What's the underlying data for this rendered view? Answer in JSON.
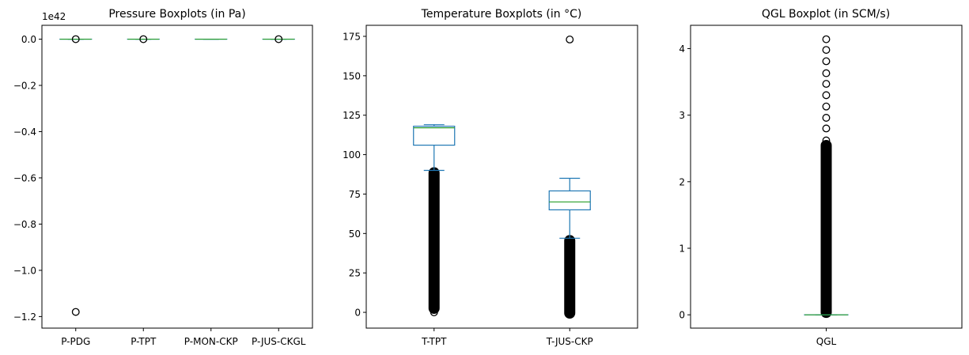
{
  "chart_data": [
    {
      "type": "boxplot",
      "title": "Pressure Boxplots (in Pa)",
      "offset_text": "1e42",
      "categories": [
        "P-PDG",
        "P-TPT",
        "P-MON-CKP",
        "P-JUS-CKGL"
      ],
      "ylim": [
        -1.25,
        0.06
      ],
      "yticks": [
        0.0,
        -0.2,
        -0.4,
        -0.6,
        -0.8,
        -1.0,
        -1.2
      ],
      "ytick_labels": [
        "0.0",
        "−0.2",
        "−0.4",
        "−0.6",
        "−0.8",
        "−1.0",
        "−1.2"
      ],
      "boxes": [
        {
          "q1": 0,
          "median": 0,
          "q3": 0,
          "whislo": 0,
          "whishi": 0,
          "fliers": [
            0,
            -1.18
          ],
          "dense_from": null
        },
        {
          "q1": 0,
          "median": 0,
          "q3": 0,
          "whislo": 0,
          "whishi": 0,
          "fliers": [
            0
          ],
          "dense_from": null
        },
        {
          "q1": 0,
          "median": 0,
          "q3": 0,
          "whislo": 0,
          "whishi": 0,
          "fliers": [],
          "dense_from": null
        },
        {
          "q1": 0,
          "median": 0,
          "q3": 0,
          "whislo": 0,
          "whishi": 0,
          "fliers": [
            0
          ],
          "dense_from": null
        }
      ]
    },
    {
      "type": "boxplot",
      "title": "Temperature Boxplots (in °C)",
      "offset_text": "",
      "categories": [
        "T-TPT",
        "T-JUS-CKP"
      ],
      "ylim": [
        -10,
        182
      ],
      "yticks": [
        0,
        25,
        50,
        75,
        100,
        125,
        150,
        175
      ],
      "ytick_labels": [
        "0",
        "25",
        "50",
        "75",
        "100",
        "125",
        "150",
        "175"
      ],
      "boxes": [
        {
          "q1": 106,
          "median": 117,
          "q3": 118,
          "whislo": 90,
          "whishi": 119,
          "fliers": [
            0
          ],
          "dense_from": [
            1,
            90
          ]
        },
        {
          "q1": 65,
          "median": 70,
          "q3": 77,
          "whislo": 47,
          "whishi": 85,
          "fliers": [
            173
          ],
          "dense_from": [
            -2,
            47
          ]
        }
      ]
    },
    {
      "type": "boxplot",
      "title": "QGL Boxplot (in SCM/s)",
      "offset_text": "",
      "categories": [
        "QGL"
      ],
      "ylim": [
        -0.2,
        4.35
      ],
      "yticks": [
        0,
        1,
        2,
        3,
        4
      ],
      "ytick_labels": [
        "0",
        "1",
        "2",
        "3",
        "4"
      ],
      "boxes": [
        {
          "q1": 0,
          "median": 0,
          "q3": 0,
          "whislo": 0,
          "whishi": 0,
          "fliers": [
            2.62,
            2.8,
            2.96,
            3.13,
            3.3,
            3.47,
            3.63,
            3.81,
            3.98,
            4.14
          ],
          "dense_from": [
            0,
            2.58
          ]
        }
      ]
    }
  ],
  "colors": {
    "box": "#1f77b4",
    "median": "#2ca02c",
    "flier": "#000000"
  }
}
